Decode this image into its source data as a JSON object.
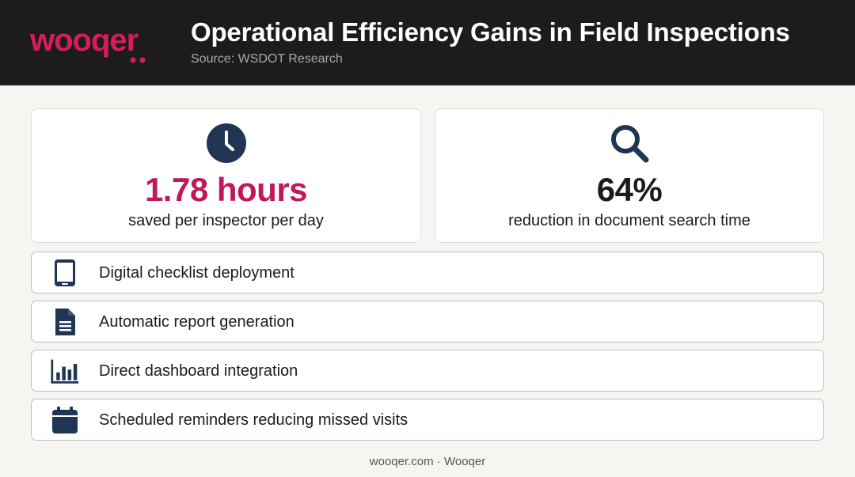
{
  "header": {
    "logo_text": "wooqer",
    "title": "Operational Efficiency Gains in Field Inspections",
    "subtitle": "Source: WSDOT Research"
  },
  "stats": [
    {
      "icon": "clock-icon",
      "value": "1.78 hours",
      "label": "saved per inspector per day",
      "value_color": "#c2185b"
    },
    {
      "icon": "magnifier-icon",
      "value": "64%",
      "label": "reduction in document search time",
      "value_color": "#1b1b1b"
    }
  ],
  "features": [
    {
      "icon": "tablet-icon",
      "label": "Digital checklist deployment"
    },
    {
      "icon": "document-icon",
      "label": "Automatic report generation"
    },
    {
      "icon": "bar-chart-icon",
      "label": "Direct dashboard integration"
    },
    {
      "icon": "calendar-icon",
      "label": "Scheduled reminders reducing missed visits"
    }
  ],
  "footer": {
    "text": "wooqer.com · Wooqer"
  },
  "colors": {
    "brand": "#d81b60",
    "accent": "#c2185b",
    "icon_navy": "#1f3553",
    "header_bg": "#1c1c1c"
  }
}
